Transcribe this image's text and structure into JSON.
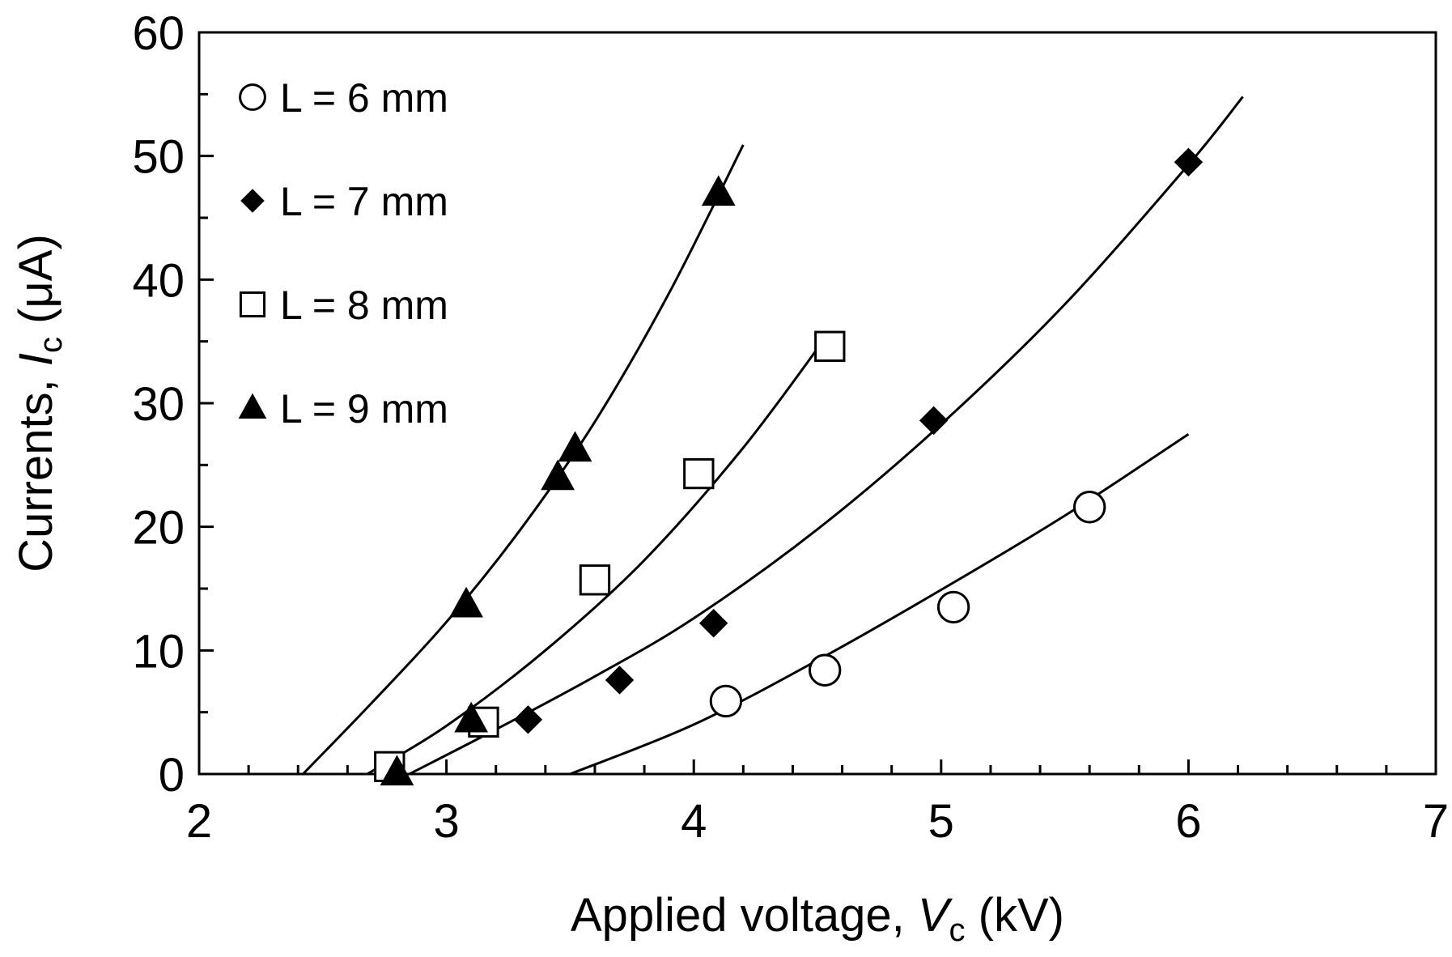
{
  "chart_data": {
    "type": "scatter",
    "xlabel": {
      "prefix": "Applied voltage, ",
      "symbol": "V",
      "subscript": "c",
      "unit": " (kV)"
    },
    "ylabel": {
      "prefix": "Currents, ",
      "symbol": "I",
      "subscript": "c",
      "unit": " (μA)"
    },
    "xlim": [
      2,
      7
    ],
    "ylim": [
      0,
      60
    ],
    "x_ticks": [
      2,
      3,
      4,
      5,
      6,
      7
    ],
    "y_ticks": [
      0,
      10,
      20,
      30,
      40,
      50,
      60
    ],
    "x_tick_labels": [
      "2",
      "3",
      "4",
      "5",
      "6",
      "7"
    ],
    "y_tick_labels": [
      "0",
      "10",
      "20",
      "30",
      "40",
      "50",
      "60"
    ],
    "grid": false,
    "legend_position": "top-left",
    "series": [
      {
        "name": "L = 6 mm",
        "marker": "open-circle",
        "points": [
          [
            4.13,
            5.9
          ],
          [
            4.53,
            8.4
          ],
          [
            5.05,
            13.5
          ],
          [
            5.6,
            21.6
          ]
        ],
        "fit": [
          [
            3.5,
            0
          ],
          [
            4.0,
            4.0
          ],
          [
            4.5,
            9.2
          ],
          [
            5.0,
            14.9
          ],
          [
            5.5,
            20.9
          ],
          [
            6.0,
            27.5
          ]
        ]
      },
      {
        "name": "L = 7 mm",
        "marker": "filled-diamond",
        "points": [
          [
            3.33,
            4.4
          ],
          [
            3.7,
            7.6
          ],
          [
            4.08,
            12.2
          ],
          [
            4.97,
            28.6
          ],
          [
            6.0,
            49.5
          ]
        ],
        "fit": [
          [
            2.85,
            0
          ],
          [
            3.2,
            3.6
          ],
          [
            3.6,
            7.9
          ],
          [
            4.0,
            12.6
          ],
          [
            4.5,
            19.8
          ],
          [
            5.0,
            28.3
          ],
          [
            5.5,
            38.0
          ],
          [
            6.0,
            49.3
          ],
          [
            6.22,
            54.8
          ]
        ]
      },
      {
        "name": "L = 8 mm",
        "marker": "open-square",
        "points": [
          [
            2.77,
            0.6
          ],
          [
            3.15,
            4.2
          ],
          [
            3.6,
            15.7
          ],
          [
            4.02,
            24.3
          ],
          [
            4.55,
            34.6
          ]
        ],
        "fit": [
          [
            2.68,
            0
          ],
          [
            3.0,
            3.9
          ],
          [
            3.4,
            10.0
          ],
          [
            3.8,
            17.3
          ],
          [
            4.2,
            26.4
          ],
          [
            4.55,
            35.8
          ]
        ]
      },
      {
        "name": "L = 9 mm",
        "marker": "filled-triangle",
        "points": [
          [
            2.8,
            0.1
          ],
          [
            3.08,
            13.7
          ],
          [
            3.1,
            4.4
          ],
          [
            3.45,
            24.0
          ],
          [
            3.52,
            26.3
          ],
          [
            4.1,
            47.0
          ]
        ],
        "fit": [
          [
            2.42,
            0
          ],
          [
            2.7,
            5.8
          ],
          [
            3.0,
            12.3
          ],
          [
            3.3,
            19.8
          ],
          [
            3.6,
            28.5
          ],
          [
            3.9,
            38.9
          ],
          [
            4.2,
            50.9
          ]
        ]
      }
    ]
  }
}
